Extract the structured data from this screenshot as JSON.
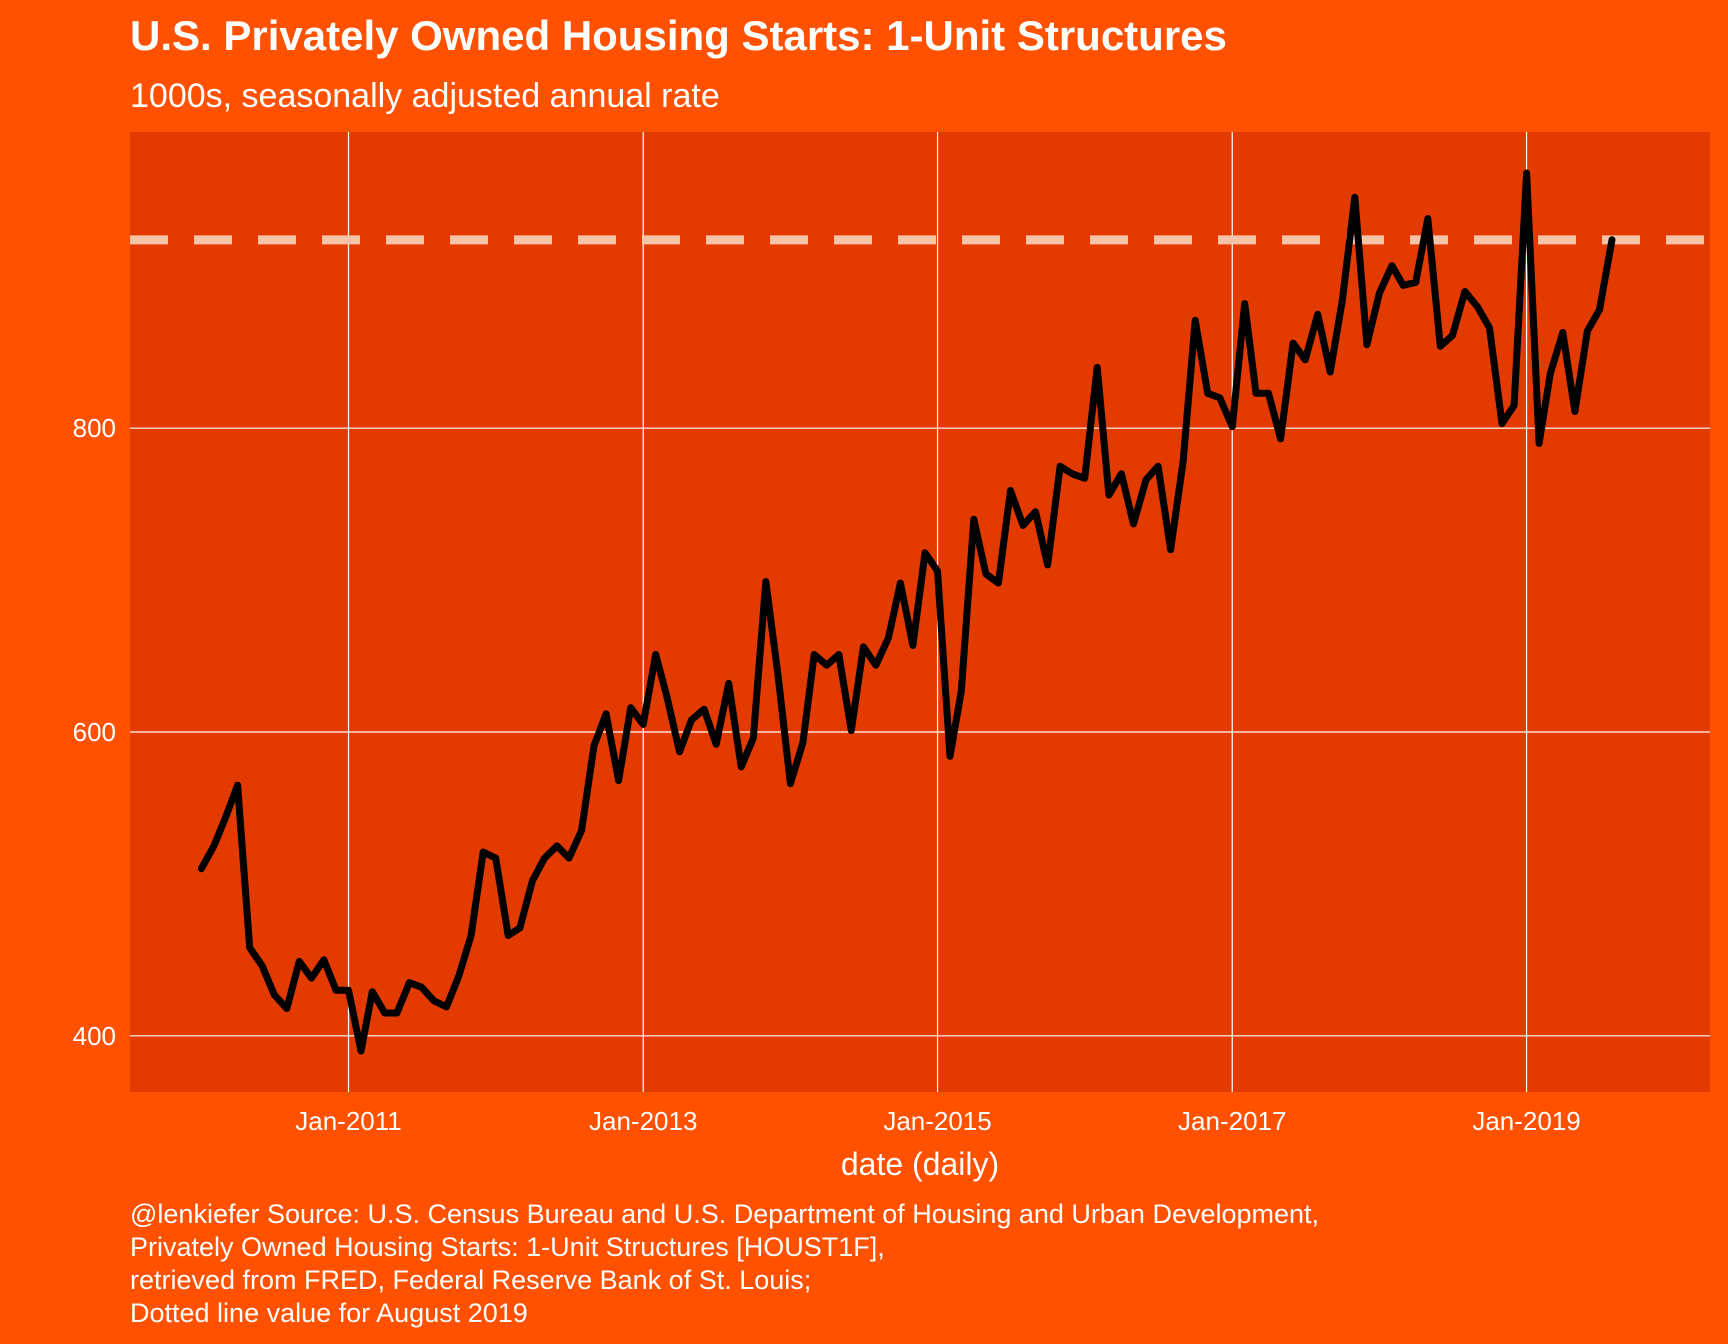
{
  "chart_data": {
    "type": "line",
    "title": "U.S. Privately Owned Housing Starts: 1-Unit Structures",
    "subtitle": "1000s, seasonally adjusted annual rate",
    "xlabel": "date (daily)",
    "ylabel": "",
    "x_ticks": [
      "Jan-2011",
      "Jan-2013",
      "Jan-2015",
      "Jan-2017",
      "Jan-2019"
    ],
    "y_ticks": [
      400,
      600,
      800
    ],
    "ylim": [
      363,
      995
    ],
    "xlim": [
      "2009-07-08",
      "2020-03-31"
    ],
    "grid": true,
    "legend": "none",
    "reference_line": {
      "value": 924,
      "style": "dashed",
      "color": "#F5C3A8"
    },
    "caption": [
      "@lenkiefer Source: U.S. Census Bureau and U.S. Department of Housing and Urban Development,",
      "Privately Owned Housing Starts: 1-Unit Structures [HOUST1F],",
      "retrieved from FRED, Federal Reserve Bank of St. Louis;",
      "Dotted line value for August 2019"
    ],
    "colors": {
      "background": "#FF5100",
      "panel": "#E33A00",
      "line": "#000000",
      "grid": "#FFFFFF"
    },
    "series": [
      {
        "x": [
          "2010-01",
          "2010-02",
          "2010-03",
          "2010-04",
          "2010-05",
          "2010-06",
          "2010-07",
          "2010-08",
          "2010-09",
          "2010-10",
          "2010-11",
          "2010-12",
          "2011-01",
          "2011-02",
          "2011-03",
          "2011-04",
          "2011-05",
          "2011-06",
          "2011-07",
          "2011-08",
          "2011-09",
          "2011-10",
          "2011-11",
          "2011-12",
          "2012-01",
          "2012-02",
          "2012-03",
          "2012-04",
          "2012-05",
          "2012-06",
          "2012-07",
          "2012-08",
          "2012-09",
          "2012-10",
          "2012-11",
          "2012-12",
          "2013-01",
          "2013-02",
          "2013-03",
          "2013-04",
          "2013-05",
          "2013-06",
          "2013-07",
          "2013-08",
          "2013-09",
          "2013-10",
          "2013-11",
          "2013-12",
          "2014-01",
          "2014-02",
          "2014-03",
          "2014-04",
          "2014-05",
          "2014-06",
          "2014-07",
          "2014-08",
          "2014-09",
          "2014-10",
          "2014-11",
          "2014-12",
          "2015-01",
          "2015-02",
          "2015-03",
          "2015-04",
          "2015-05",
          "2015-06",
          "2015-07",
          "2015-08",
          "2015-09",
          "2015-10",
          "2015-11",
          "2015-12",
          "2016-01",
          "2016-02",
          "2016-03",
          "2016-04",
          "2016-05",
          "2016-06",
          "2016-07",
          "2016-08",
          "2016-09",
          "2016-10",
          "2016-11",
          "2016-12",
          "2017-01",
          "2017-02",
          "2017-03",
          "2017-04",
          "2017-05",
          "2017-06",
          "2017-07",
          "2017-08",
          "2017-09",
          "2017-10",
          "2017-11",
          "2017-12",
          "2018-01",
          "2018-02",
          "2018-03",
          "2018-04",
          "2018-05",
          "2018-06",
          "2018-07",
          "2018-08",
          "2018-09",
          "2018-10",
          "2018-11",
          "2018-12",
          "2019-01",
          "2019-02",
          "2019-03",
          "2019-04",
          "2019-05",
          "2019-06",
          "2019-07",
          "2019-08"
        ],
        "values": [
          510,
          525,
          543,
          565,
          458,
          446,
          427,
          418,
          449,
          438,
          450,
          430,
          430,
          390,
          429,
          415,
          415,
          435,
          432,
          423,
          419,
          439,
          466,
          521,
          517,
          466,
          471,
          502,
          517,
          525,
          517,
          535,
          591,
          612,
          568,
          616,
          605,
          651,
          623,
          587,
          608,
          615,
          592,
          632,
          577,
          596,
          699,
          638,
          566,
          593,
          651,
          644,
          651,
          601,
          656,
          644,
          662,
          698,
          657,
          718,
          706,
          584,
          627,
          740,
          704,
          698,
          759,
          736,
          745,
          710,
          775,
          770,
          767,
          840,
          756,
          770,
          737,
          766,
          775,
          720,
          778,
          871,
          823,
          820,
          801,
          882,
          823,
          823,
          793,
          856,
          845,
          875,
          837,
          884,
          952,
          855,
          889,
          907,
          894,
          896,
          938,
          854,
          861,
          890,
          880,
          866,
          803,
          815,
          968,
          790,
          836,
          863,
          811,
          864,
          878,
          924
        ]
      }
    ]
  }
}
